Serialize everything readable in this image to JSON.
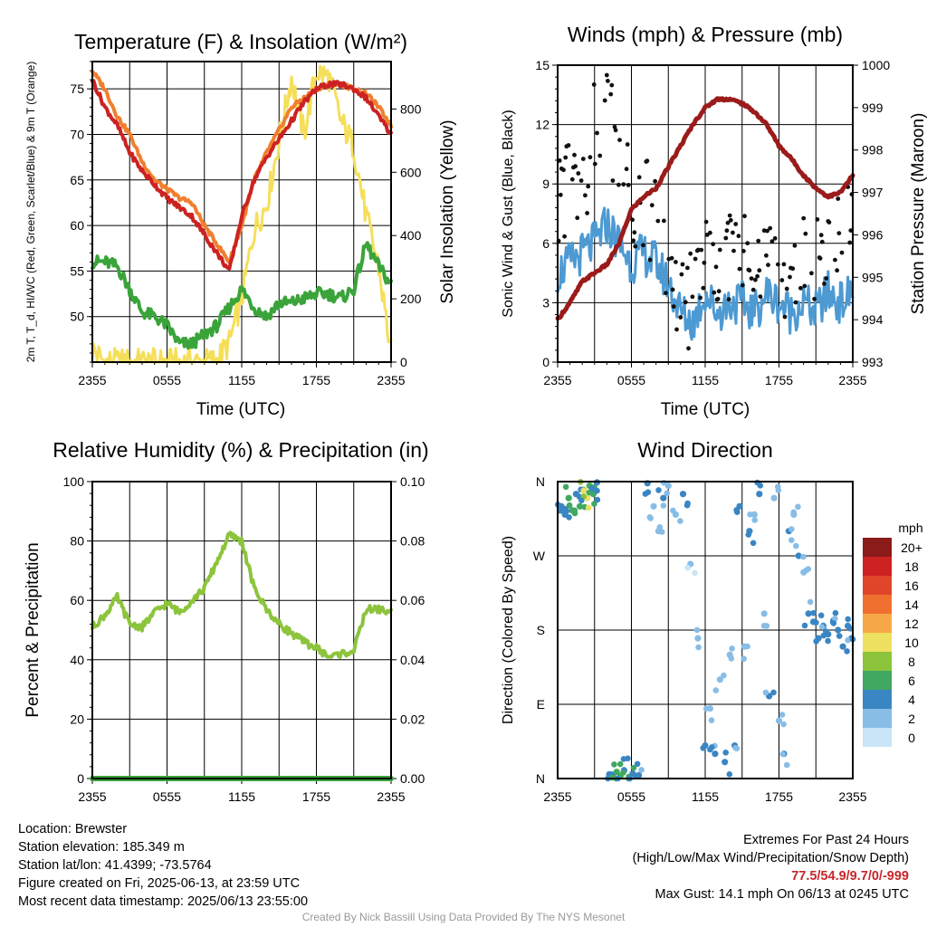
{
  "colors": {
    "t2m": "#cc2222",
    "t9m": "#f07f2e",
    "dewpoint": "#3aa43a",
    "solar": "#f5df5a",
    "wind": "#4d9ad3",
    "gust": "#111111",
    "pressure": "#9b1b1b",
    "rh": "#8cc43c",
    "precip": "#3aa43a"
  },
  "footer": {
    "location": "Location: Brewster",
    "elevation": "Station elevation: 185.349 m",
    "latlon": "Station lat/lon: 41.4399; -73.5764",
    "created": "Figure created on Fri, 2025-06-13, at 23:59 UTC",
    "recent": "Most recent data timestamp: 2025/06/13 23:55:00",
    "extremes_title": "Extremes For Past 24 Hours",
    "extremes_subtitle": "(High/Low/Max Wind/Precipitation/Snow Depth)",
    "extremes_values": "77.5/54.9/9.7/0/-999",
    "max_gust": "Max Gust: 14.1 mph On 06/13 at 0245 UTC",
    "credit": "Created By Nick Bassill Using Data Provided By The NYS Mesonet"
  },
  "chart_data": [
    {
      "type": "line",
      "title": "Temperature (F) & Insolation (W/m²)",
      "xlabel": "Time (UTC)",
      "ylabel": "2m T, T_d, HI/WC (Red, Green, Scarlet/Blue) & 9m T (Orange)",
      "ylabel_right": "Solar Insolation (Yellow)",
      "x_ticks": [
        "2355",
        "0555",
        "1155",
        "1755",
        "2355"
      ],
      "ylim": [
        45,
        78
      ],
      "y_ticks": [
        50,
        55,
        60,
        65,
        70,
        75
      ],
      "ylim_right": [
        0,
        950
      ],
      "y_ticks_right": [
        0,
        200,
        400,
        600,
        800
      ],
      "x": [
        0,
        1,
        2,
        3,
        4,
        5,
        6,
        7,
        8,
        9,
        10,
        11,
        12,
        13,
        14,
        15,
        16,
        17,
        18,
        19,
        20,
        21,
        22,
        23,
        24
      ],
      "series": [
        {
          "name": "2m T",
          "key": "t2m",
          "values": [
            76,
            73,
            71,
            68,
            66,
            64.5,
            63,
            62,
            61,
            59,
            57,
            55,
            61,
            65,
            67.5,
            69.5,
            71.5,
            73.5,
            75,
            75.5,
            75.5,
            75,
            74,
            72,
            70
          ]
        },
        {
          "name": "9m T",
          "key": "t9m",
          "values": [
            77,
            75,
            72,
            70,
            67,
            65,
            64,
            63,
            62.5,
            60,
            58,
            56,
            60,
            65,
            68,
            70.5,
            73,
            74,
            75,
            75.5,
            75.5,
            75,
            74.5,
            73,
            71
          ]
        },
        {
          "name": "Dewpoint",
          "key": "dewpoint",
          "values": [
            56,
            56,
            55.5,
            53,
            50.5,
            50,
            49,
            47,
            47,
            48,
            49,
            51,
            53,
            51,
            50,
            51.5,
            51.5,
            52,
            52.5,
            52.5,
            52,
            53,
            58,
            55.5,
            53.5
          ]
        },
        {
          "name": "Solar",
          "key": "solar",
          "axis": "right",
          "values": [
            40,
            0,
            0,
            0,
            0,
            0,
            0,
            0,
            0,
            0,
            5,
            60,
            200,
            420,
            500,
            700,
            900,
            720,
            920,
            900,
            760,
            680,
            460,
            300,
            30
          ]
        }
      ]
    },
    {
      "type": "line",
      "title": "Winds (mph) & Pressure (mb)",
      "xlabel": "Time (UTC)",
      "ylabel": "Sonic Wind & Gust (Blue, Black)",
      "ylabel_right": "Station Pressure (Maroon)",
      "x_ticks": [
        "2355",
        "0555",
        "1155",
        "1755",
        "2355"
      ],
      "ylim": [
        0,
        15
      ],
      "y_ticks": [
        0,
        3,
        6,
        9,
        12,
        15
      ],
      "ylim_right": [
        993,
        1000
      ],
      "y_ticks_right": [
        993,
        994,
        995,
        996,
        997,
        998,
        999,
        1000
      ],
      "x": [
        0,
        1,
        2,
        3,
        4,
        5,
        6,
        7,
        8,
        9,
        10,
        11,
        12,
        13,
        14,
        15,
        16,
        17,
        18,
        19,
        20,
        21,
        22,
        23,
        24
      ],
      "series": [
        {
          "name": "Sonic Wind",
          "key": "wind",
          "values": [
            4.5,
            5,
            5.5,
            6,
            7,
            6,
            5,
            5.5,
            5,
            4,
            2.5,
            2,
            3.5,
            2.5,
            3,
            3,
            2.5,
            3.5,
            3,
            2.5,
            3,
            2.5,
            3.5,
            3,
            3.5
          ]
        },
        {
          "name": "Gust",
          "key": "gust",
          "values": [
            8,
            9,
            8.5,
            12,
            13,
            10,
            8.5,
            8,
            7,
            5,
            3.5,
            3,
            5.5,
            5,
            5.5,
            6,
            5,
            5.5,
            5,
            4.5,
            5,
            4.5,
            6.5,
            7,
            8
          ]
        },
        {
          "name": "Pressure",
          "key": "pressure",
          "axis": "right",
          "values": [
            994,
            994.4,
            994.9,
            995.1,
            995.3,
            995.8,
            996.6,
            996.9,
            997.1,
            997.6,
            998.1,
            998.6,
            999.0,
            999.2,
            999.2,
            999.1,
            998.9,
            998.6,
            998.1,
            997.8,
            997.4,
            997.1,
            996.9,
            997.0,
            997.4
          ]
        }
      ]
    },
    {
      "type": "line",
      "title": "Relative Humidity (%) & Precipitation (in)",
      "ylabel": "Percent & Precipitation",
      "x_ticks": [
        "2355",
        "0555",
        "1155",
        "1755",
        "2355"
      ],
      "ylim": [
        0,
        100
      ],
      "y_ticks": [
        0,
        20,
        40,
        60,
        80,
        100
      ],
      "ylim_right": [
        0,
        0.1
      ],
      "y_ticks_right": [
        "0.00",
        "0.02",
        "0.04",
        "0.06",
        "0.08",
        "0.10"
      ],
      "x": [
        0,
        1,
        2,
        3,
        4,
        5,
        6,
        7,
        8,
        9,
        10,
        11,
        12,
        13,
        14,
        15,
        16,
        17,
        18,
        19,
        20,
        21,
        22,
        23,
        24
      ],
      "series": [
        {
          "name": "RH",
          "key": "rh",
          "values": [
            51,
            55,
            61,
            52,
            51,
            56,
            59,
            56,
            60,
            64,
            73,
            82,
            80,
            64,
            57,
            52,
            49,
            46,
            44,
            41,
            42,
            43,
            57,
            57,
            56
          ]
        },
        {
          "name": "Precipitation",
          "key": "precip",
          "axis": "right",
          "values": [
            0,
            0,
            0,
            0,
            0,
            0,
            0,
            0,
            0,
            0,
            0,
            0,
            0,
            0,
            0,
            0,
            0,
            0,
            0,
            0,
            0,
            0,
            0,
            0,
            0
          ]
        }
      ]
    },
    {
      "type": "scatter",
      "title": "Wind Direction",
      "ylabel": "Direction (Colored By Speed)",
      "x_ticks": [
        "2355",
        "0555",
        "1155",
        "1755",
        "2355"
      ],
      "y_tick_labels": [
        "N",
        "E",
        "S",
        "W",
        "N"
      ],
      "ylim": [
        0,
        360
      ],
      "legend_title": "mph",
      "legend_labels": [
        "20+",
        "18",
        "16",
        "14",
        "12",
        "10",
        "8",
        "6",
        "4",
        "2",
        "0"
      ],
      "legend_colors": [
        "#8b1a1a",
        "#cc2222",
        "#e0452a",
        "#f07030",
        "#f6a848",
        "#eee060",
        "#8cc43c",
        "#40a860",
        "#3a86c4",
        "#88bde6",
        "#c9e5f6"
      ],
      "speed_colors": [
        "#c9e5f6",
        "#88bde6",
        "#3a86c4",
        "#40a860",
        "#8cc43c",
        "#eee060"
      ],
      "points": [
        {
          "t": 0.3,
          "dir": 330,
          "spd": 3
        },
        {
          "t": 0.6,
          "dir": 320,
          "spd": 4
        },
        {
          "t": 0.9,
          "dir": 340,
          "spd": 5
        },
        {
          "t": 1.2,
          "dir": 325,
          "spd": 6
        },
        {
          "t": 1.5,
          "dir": 345,
          "spd": 4
        },
        {
          "t": 1.8,
          "dir": 330,
          "spd": 5
        },
        {
          "t": 2.1,
          "dir": 350,
          "spd": 7
        },
        {
          "t": 2.4,
          "dir": 340,
          "spd": 9
        },
        {
          "t": 2.6,
          "dir": 355,
          "spd": 6
        },
        {
          "t": 2.9,
          "dir": 345,
          "spd": 5
        },
        {
          "t": 3.2,
          "dir": 359,
          "spd": 4
        },
        {
          "t": 4.2,
          "dir": 5,
          "spd": 4
        },
        {
          "t": 4.5,
          "dir": 2,
          "spd": 6
        },
        {
          "t": 4.8,
          "dir": 8,
          "spd": 5
        },
        {
          "t": 5.1,
          "dir": 3,
          "spd": 6
        },
        {
          "t": 5.4,
          "dir": 10,
          "spd": 4
        },
        {
          "t": 5.8,
          "dir": 2,
          "spd": 5
        },
        {
          "t": 6.1,
          "dir": 6,
          "spd": 4
        },
        {
          "t": 6.6,
          "dir": 4,
          "spd": 3
        },
        {
          "t": 7.3,
          "dir": 358,
          "spd": 3
        },
        {
          "t": 7.8,
          "dir": 330,
          "spd": 2
        },
        {
          "t": 8.2,
          "dir": 300,
          "spd": 2
        },
        {
          "t": 8.6,
          "dir": 340,
          "spd": 3
        },
        {
          "t": 9.0,
          "dir": 355,
          "spd": 2
        },
        {
          "t": 9.6,
          "dir": 320,
          "spd": 2
        },
        {
          "t": 10.2,
          "dir": 345,
          "spd": 3
        },
        {
          "t": 10.8,
          "dir": 260,
          "spd": 1
        },
        {
          "t": 11.4,
          "dir": 170,
          "spd": 2
        },
        {
          "t": 12.0,
          "dir": 40,
          "spd": 3
        },
        {
          "t": 12.4,
          "dir": 85,
          "spd": 2
        },
        {
          "t": 12.8,
          "dir": 30,
          "spd": 3
        },
        {
          "t": 13.2,
          "dir": 120,
          "spd": 2
        },
        {
          "t": 13.6,
          "dir": 20,
          "spd": 4
        },
        {
          "t": 14.0,
          "dir": 150,
          "spd": 2
        },
        {
          "t": 14.4,
          "dir": 40,
          "spd": 3
        },
        {
          "t": 14.8,
          "dir": 330,
          "spd": 4
        },
        {
          "t": 15.2,
          "dir": 160,
          "spd": 2
        },
        {
          "t": 15.6,
          "dir": 300,
          "spd": 3
        },
        {
          "t": 16.0,
          "dir": 320,
          "spd": 2
        },
        {
          "t": 16.4,
          "dir": 345,
          "spd": 4
        },
        {
          "t": 16.8,
          "dir": 200,
          "spd": 2
        },
        {
          "t": 17.2,
          "dir": 100,
          "spd": 3
        },
        {
          "t": 17.6,
          "dir": 340,
          "spd": 2
        },
        {
          "t": 18.0,
          "dir": 70,
          "spd": 2
        },
        {
          "t": 18.4,
          "dir": 30,
          "spd": 3
        },
        {
          "t": 18.8,
          "dir": 300,
          "spd": 3
        },
        {
          "t": 19.2,
          "dir": 320,
          "spd": 2
        },
        {
          "t": 19.6,
          "dir": 270,
          "spd": 3
        },
        {
          "t": 20.0,
          "dir": 250,
          "spd": 2
        },
        {
          "t": 20.4,
          "dir": 200,
          "spd": 3
        },
        {
          "t": 20.8,
          "dir": 190,
          "spd": 4
        },
        {
          "t": 21.2,
          "dir": 170,
          "spd": 3
        },
        {
          "t": 21.6,
          "dir": 185,
          "spd": 4
        },
        {
          "t": 22.0,
          "dir": 175,
          "spd": 4
        },
        {
          "t": 22.4,
          "dir": 190,
          "spd": 3
        },
        {
          "t": 22.8,
          "dir": 180,
          "spd": 4
        },
        {
          "t": 23.2,
          "dir": 160,
          "spd": 3
        },
        {
          "t": 23.6,
          "dir": 185,
          "spd": 4
        },
        {
          "t": 23.9,
          "dir": 170,
          "spd": 3
        }
      ]
    }
  ]
}
